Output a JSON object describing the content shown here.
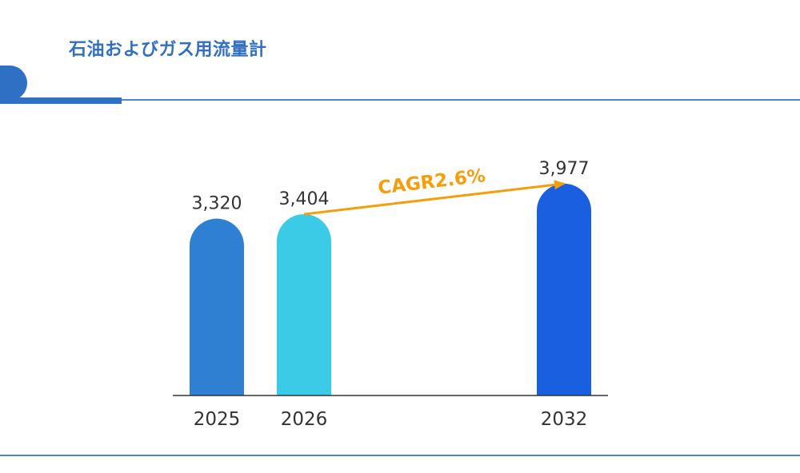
{
  "title": "石油およびガス用流量計",
  "chart_data": {
    "type": "bar",
    "categories": [
      "2025",
      "2026",
      "2032"
    ],
    "values": [
      3320,
      3404,
      3977
    ],
    "value_labels": [
      "3,320",
      "3,404",
      "3,977"
    ],
    "bar_colors": [
      "#2f7fd3",
      "#3ccbe6",
      "#1a5fe0"
    ],
    "ylim": [
      0,
      4800
    ],
    "annotation": {
      "text": "CAGR2.6%",
      "from": "2026",
      "to": "2032",
      "color": "#f59e0b"
    },
    "grid": false,
    "legend": "none"
  }
}
